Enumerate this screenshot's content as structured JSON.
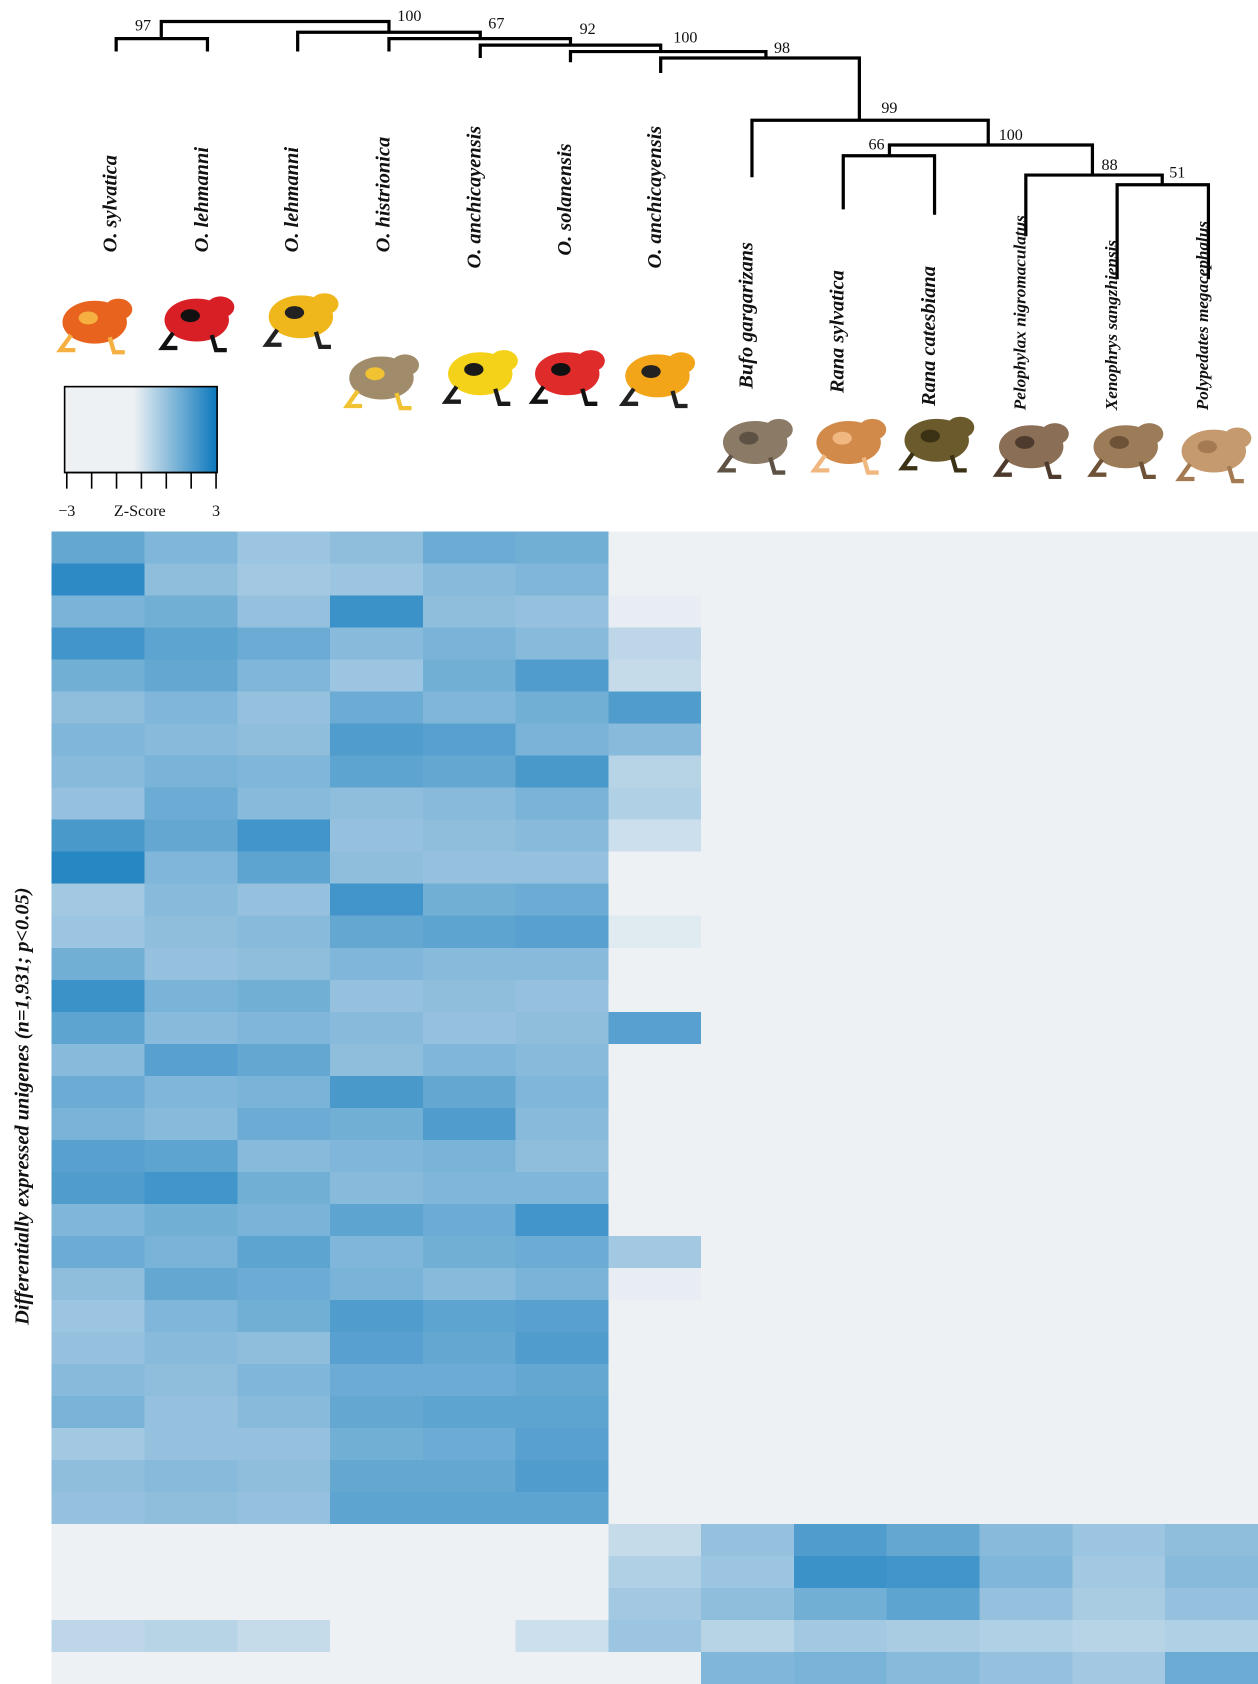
{
  "chart_data": {
    "type": "heatmap",
    "ylabel": "Differentially expressed unigenes (n=1,931; p<0.05)",
    "categories": [
      "O. sylvatica",
      "O. lehmanni",
      "O. lehmanni",
      "O. histrionica",
      "O. anchicayensis",
      "O. solanensis",
      "O. anchicayensis",
      "Bufo gargarizans",
      "Rana sylvatica",
      "Rana catesbiana",
      "Pelophylax nigromaculatus",
      "Xenophrys sangzhiensis",
      "Polypedates megacephalus"
    ],
    "dendrogram_supports": [
      97,
      100,
      67,
      92,
      100,
      98,
      99,
      100,
      66,
      88,
      51
    ],
    "colorbar_label": "Z-Score",
    "zlim": [
      -3,
      3
    ],
    "zticks": [
      {
        "value": -3,
        "label": "−3"
      },
      {
        "value": -2,
        "label": null
      },
      {
        "value": -1,
        "label": null
      },
      {
        "value": 0,
        "label": null
      },
      {
        "value": 1,
        "label": null
      },
      {
        "value": 2,
        "label": null
      },
      3
    ],
    "colormap": [
      "#eef1f4",
      "#0b78bc"
    ],
    "values": [
      [
        1.7,
        1.3,
        0.9,
        1.1,
        1.6,
        1.5,
        -0.9,
        -1.2,
        -1.2,
        -1.2,
        -1.2,
        -1.2,
        -1.2
      ],
      [
        2.5,
        1.1,
        0.8,
        0.9,
        1.2,
        1.3,
        -0.5,
        -1.2,
        -1.3,
        -1.2,
        -1.2,
        -1.1,
        -1.2
      ],
      [
        1.4,
        1.5,
        1.0,
        2.3,
        1.1,
        1.0,
        -0.2,
        -1.2,
        -1.2,
        -1.2,
        -1.3,
        -1.2,
        -1.2
      ],
      [
        2.2,
        1.8,
        1.6,
        1.2,
        1.4,
        1.2,
        0.4,
        -1.1,
        -1.2,
        -1.2,
        -1.2,
        -1.2,
        -1.1
      ],
      [
        1.5,
        1.7,
        1.3,
        0.9,
        1.5,
        2.0,
        0.3,
        -1.2,
        -1.2,
        -1.1,
        -1.2,
        -1.2,
        -1.2
      ],
      [
        1.1,
        1.3,
        1.0,
        1.6,
        1.3,
        1.5,
        2.0,
        -1.2,
        -1.2,
        -1.2,
        -1.2,
        -1.3,
        -1.2
      ],
      [
        1.3,
        1.2,
        1.1,
        2.0,
        1.9,
        1.4,
        1.2,
        -1.2,
        -1.1,
        -1.2,
        -1.2,
        -1.2,
        -1.2
      ],
      [
        1.2,
        1.4,
        1.3,
        1.8,
        1.7,
        2.1,
        0.5,
        -1.2,
        -1.2,
        -1.2,
        -1.1,
        -1.2,
        -1.2
      ],
      [
        1.0,
        1.6,
        1.2,
        1.1,
        1.2,
        1.4,
        0.6,
        -1.3,
        -1.2,
        -1.2,
        -1.2,
        -1.2,
        -1.2
      ],
      [
        2.1,
        1.7,
        2.2,
        1.0,
        1.1,
        1.2,
        0.2,
        -1.2,
        -1.2,
        -1.2,
        -1.2,
        -1.2,
        -1.1
      ],
      [
        2.6,
        1.3,
        1.8,
        1.1,
        1.0,
        1.0,
        -0.3,
        -1.2,
        -1.2,
        -1.3,
        -1.2,
        -1.2,
        -1.2
      ],
      [
        0.8,
        1.2,
        1.0,
        2.2,
        1.5,
        1.6,
        -0.4,
        -1.2,
        -1.2,
        -1.2,
        -1.2,
        -1.1,
        -1.2
      ],
      [
        0.9,
        1.1,
        1.2,
        1.7,
        1.8,
        1.9,
        -0.1,
        -1.1,
        -1.2,
        -1.2,
        -1.2,
        -1.2,
        -1.2
      ],
      [
        1.5,
        1.0,
        1.1,
        1.3,
        1.2,
        1.2,
        -0.7,
        -1.2,
        -1.2,
        -1.2,
        -1.3,
        -1.2,
        -1.2
      ],
      [
        2.3,
        1.4,
        1.5,
        1.0,
        1.1,
        1.0,
        -0.9,
        -1.2,
        -1.1,
        -1.2,
        -1.2,
        -1.2,
        -1.2
      ],
      [
        1.8,
        1.2,
        1.3,
        1.2,
        1.0,
        1.1,
        1.9,
        -1.2,
        -1.2,
        -1.2,
        -1.2,
        -1.2,
        -1.3
      ],
      [
        1.2,
        1.9,
        1.7,
        1.1,
        1.3,
        1.2,
        -0.6,
        -1.2,
        -1.2,
        -1.1,
        -1.2,
        -1.2,
        -1.2
      ],
      [
        1.6,
        1.3,
        1.4,
        2.1,
        1.7,
        1.3,
        -0.8,
        -1.2,
        -1.2,
        -1.2,
        -1.2,
        -1.2,
        -1.2
      ],
      [
        1.4,
        1.2,
        1.6,
        1.5,
        2.0,
        1.2,
        -0.5,
        -1.3,
        -1.2,
        -1.2,
        -1.2,
        -1.1,
        -1.2
      ],
      [
        1.9,
        1.8,
        1.2,
        1.3,
        1.4,
        1.1,
        -0.3,
        -1.2,
        -1.2,
        -1.2,
        -1.2,
        -1.2,
        -1.2
      ],
      [
        2.0,
        2.2,
        1.5,
        1.2,
        1.3,
        1.3,
        -0.7,
        -1.2,
        -1.3,
        -1.2,
        -1.2,
        -1.2,
        -1.1
      ],
      [
        1.3,
        1.5,
        1.4,
        1.8,
        1.6,
        2.2,
        -0.4,
        -1.2,
        -1.2,
        -1.2,
        -1.1,
        -1.2,
        -1.2
      ],
      [
        1.6,
        1.4,
        1.8,
        1.3,
        1.5,
        1.6,
        0.8,
        -1.1,
        -1.2,
        -1.2,
        -1.2,
        -1.2,
        -1.2
      ],
      [
        1.1,
        1.7,
        1.6,
        1.4,
        1.2,
        1.4,
        -0.2,
        -1.2,
        -1.2,
        -1.2,
        -1.2,
        -1.3,
        -1.2
      ],
      [
        0.9,
        1.3,
        1.5,
        2.0,
        1.8,
        1.9,
        -0.6,
        -1.2,
        -1.1,
        -1.2,
        -1.2,
        -1.2,
        -1.2
      ],
      [
        1.0,
        1.2,
        1.1,
        1.9,
        1.7,
        2.0,
        -0.8,
        -1.2,
        -1.2,
        -1.2,
        -1.2,
        -1.2,
        -1.2
      ],
      [
        1.2,
        1.1,
        1.3,
        1.6,
        1.6,
        1.7,
        -0.9,
        -1.2,
        -1.2,
        -1.3,
        -1.2,
        -1.2,
        -1.2
      ],
      [
        1.4,
        1.0,
        1.2,
        1.7,
        1.8,
        1.8,
        -1.0,
        -1.2,
        -1.2,
        -1.2,
        -1.2,
        -1.1,
        -1.2
      ],
      [
        0.8,
        1.0,
        1.0,
        1.5,
        1.6,
        1.9,
        -0.9,
        -1.1,
        -1.2,
        -1.2,
        -1.2,
        -1.2,
        -1.2
      ],
      [
        1.1,
        1.2,
        1.1,
        1.7,
        1.7,
        2.0,
        -1.0,
        -1.2,
        -1.2,
        -1.2,
        -1.3,
        -1.2,
        -1.2
      ],
      [
        1.0,
        1.1,
        1.0,
        1.8,
        1.8,
        1.8,
        -1.1,
        -1.2,
        -1.2,
        -1.2,
        -1.2,
        -1.2,
        -1.2
      ],
      [
        -1.1,
        -1.0,
        -1.1,
        -1.2,
        -1.0,
        -1.0,
        0.3,
        1.0,
        2.0,
        1.7,
        1.2,
        0.9,
        1.1
      ],
      [
        -1.0,
        -1.1,
        -1.0,
        -1.1,
        -0.9,
        -0.9,
        0.6,
        0.9,
        2.3,
        2.2,
        1.3,
        0.8,
        1.2
      ],
      [
        -0.9,
        -1.0,
        -1.0,
        -1.1,
        -0.8,
        -0.7,
        0.8,
        1.1,
        1.5,
        1.8,
        1.0,
        0.7,
        1.0
      ],
      [
        0.4,
        0.5,
        0.3,
        -0.6,
        -0.3,
        0.2,
        0.9,
        0.5,
        0.8,
        0.7,
        0.6,
        0.5,
        0.6
      ],
      [
        -1.0,
        -1.0,
        -1.1,
        -1.1,
        -1.0,
        -0.9,
        -0.5,
        1.3,
        1.4,
        1.2,
        1.0,
        0.8,
        1.6
      ]
    ]
  }
}
